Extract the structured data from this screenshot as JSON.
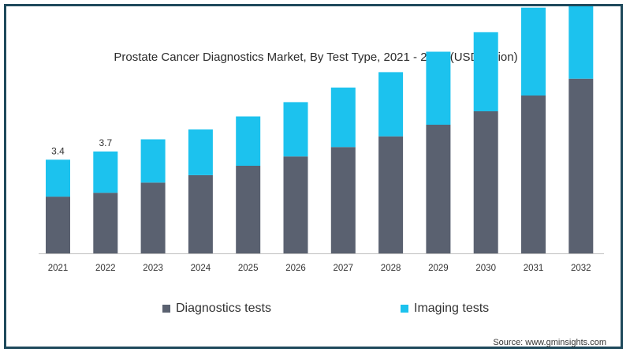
{
  "colors": {
    "diagnostics": "#5a6170",
    "imaging": "#1cc2ee",
    "border": "#1f4a5c"
  },
  "legend": {
    "diagnostics_label": "Diagnostics tests",
    "imaging_label": "Imaging tests"
  },
  "source": "Source: www.gminsights.com",
  "chart_data": {
    "type": "bar",
    "stacked": true,
    "title": "Prostate Cancer Diagnostics Market, By Test Type, 2021 - 2032 (USD Billion)",
    "xlabel": "",
    "ylabel": "",
    "categories": [
      "2021",
      "2022",
      "2023",
      "2024",
      "2025",
      "2026",
      "2027",
      "2028",
      "2029",
      "2030",
      "2031",
      "2032"
    ],
    "series": [
      {
        "name": "Diagnostics tests",
        "values": [
          2.06,
          2.2,
          2.57,
          2.84,
          3.18,
          3.52,
          3.86,
          4.25,
          4.67,
          5.16,
          5.73,
          6.34
        ]
      },
      {
        "name": "Imaging tests",
        "values": [
          1.34,
          1.5,
          1.57,
          1.66,
          1.79,
          1.97,
          2.16,
          2.33,
          2.65,
          2.87,
          3.19,
          3.61
        ]
      }
    ],
    "data_labels": [
      "3.4",
      "3.7",
      "",
      "",
      "",
      "",
      "",
      "",
      "",
      "",
      "",
      ""
    ],
    "ylim": [
      0,
      10
    ],
    "grid": false,
    "legend_position": "bottom"
  }
}
